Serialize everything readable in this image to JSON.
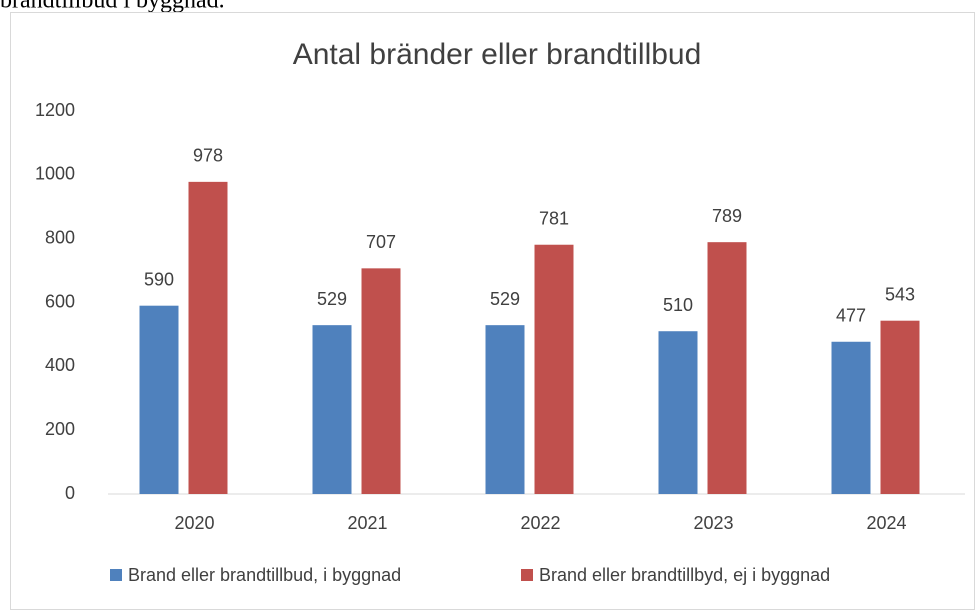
{
  "caption": "brandtillbud i byggnad.",
  "chart_data": {
    "type": "bar",
    "title": "Antal bränder eller brandtillbud",
    "categories": [
      "2020",
      "2021",
      "2022",
      "2023",
      "2024"
    ],
    "series": [
      {
        "name": "Brand eller brandtillbud, i byggnad",
        "color": "#4f81bd",
        "values": [
          590,
          529,
          529,
          510,
          477
        ]
      },
      {
        "name": "Brand eller brandtillbyd, ej i byggnad",
        "color": "#c0504d",
        "values": [
          978,
          707,
          781,
          789,
          543
        ]
      }
    ],
    "ylim": [
      0,
      1200
    ],
    "yticks": [
      0,
      200,
      400,
      600,
      800,
      1000,
      1200
    ],
    "grid": false,
    "legend": "bottom"
  }
}
